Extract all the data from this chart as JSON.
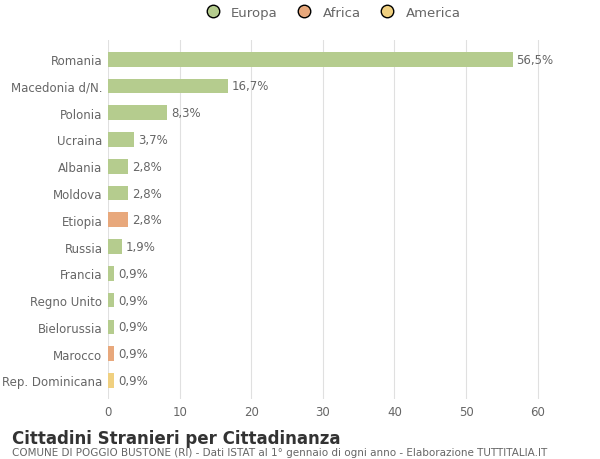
{
  "categories": [
    "Romania",
    "Macedonia d/N.",
    "Polonia",
    "Ucraina",
    "Albania",
    "Moldova",
    "Etiopia",
    "Russia",
    "Francia",
    "Regno Unito",
    "Bielorussia",
    "Marocco",
    "Rep. Dominicana"
  ],
  "values": [
    56.5,
    16.7,
    8.3,
    3.7,
    2.8,
    2.8,
    2.8,
    1.9,
    0.9,
    0.9,
    0.9,
    0.9,
    0.9
  ],
  "labels": [
    "56,5%",
    "16,7%",
    "8,3%",
    "3,7%",
    "2,8%",
    "2,8%",
    "2,8%",
    "1,9%",
    "0,9%",
    "0,9%",
    "0,9%",
    "0,9%",
    "0,9%"
  ],
  "continents": [
    "Europa",
    "Europa",
    "Europa",
    "Europa",
    "Europa",
    "Europa",
    "Africa",
    "Europa",
    "Europa",
    "Europa",
    "Europa",
    "Africa",
    "America"
  ],
  "colors": {
    "Europa": "#b5cc8e",
    "Africa": "#e8a87c",
    "America": "#f0d080"
  },
  "legend_items": [
    "Europa",
    "Africa",
    "America"
  ],
  "legend_colors": [
    "#b5cc8e",
    "#e8a87c",
    "#f0d080"
  ],
  "title": "Cittadini Stranieri per Cittadinanza",
  "subtitle": "COMUNE DI POGGIO BUSTONE (RI) - Dati ISTAT al 1° gennaio di ogni anno - Elaborazione TUTTITALIA.IT",
  "xlim": [
    0,
    62
  ],
  "xticks": [
    0,
    10,
    20,
    30,
    40,
    50,
    60
  ],
  "background_color": "#ffffff",
  "grid_color": "#e0e0e0",
  "bar_height": 0.55,
  "title_fontsize": 12,
  "subtitle_fontsize": 7.5,
  "label_fontsize": 8.5,
  "tick_fontsize": 8.5,
  "legend_fontsize": 9.5
}
